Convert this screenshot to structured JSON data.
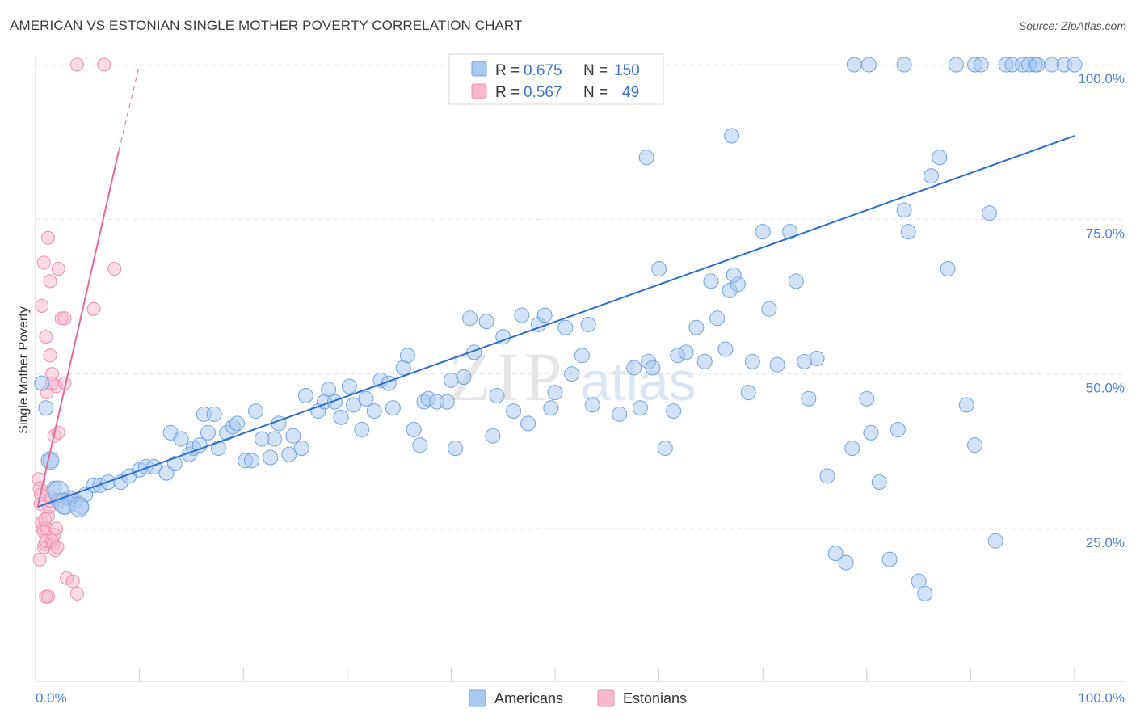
{
  "title": "AMERICAN VS ESTONIAN SINGLE MOTHER POVERTY CORRELATION CHART",
  "source": "Source: ZipAtlas.com",
  "watermark": {
    "zip": "ZIP",
    "atlas": "atlas"
  },
  "colors": {
    "americans_fill": "#a8c8f0",
    "americans_stroke": "#6fa3e0",
    "americans_line": "#2a6fcf",
    "estonians_fill": "#f7b8cc",
    "estonians_stroke": "#ee8fb0",
    "estonians_line": "#e8679a",
    "tick_blue": "#4a7fd4",
    "grid": "#e3e3e3"
  },
  "legend_top": {
    "rows": [
      {
        "r_label": "R =",
        "r_value": "0.675",
        "n_label": "N =",
        "n_value": "150"
      },
      {
        "r_label": "R =",
        "r_value": "0.567",
        "n_label": "N =",
        "n_value": "49"
      }
    ]
  },
  "legend_bottom": [
    "Americans",
    "Estonians"
  ],
  "chart_data": {
    "type": "scatter",
    "title": "AMERICAN VS ESTONIAN SINGLE MOTHER POVERTY CORRELATION CHART",
    "xlabel": "",
    "ylabel": "Single Mother Poverty",
    "xlim": [
      0,
      100
    ],
    "ylim": [
      0,
      100
    ],
    "x_tick_labels": [
      "0.0%",
      "100.0%"
    ],
    "y_ticks": [
      25,
      50,
      75,
      100
    ],
    "y_tick_labels": [
      "25.0%",
      "50.0%",
      "75.0%",
      "100.0%"
    ],
    "grid": true,
    "series": [
      {
        "name": "Americans",
        "R": 0.675,
        "N": 150,
        "trend": {
          "x": [
            0.2,
            100
          ],
          "y": [
            28.5,
            88.5
          ]
        },
        "points": [
          [
            0.6,
            48.5
          ],
          [
            1.0,
            44.5
          ],
          [
            1.4,
            36
          ],
          [
            1.8,
            31.5
          ],
          [
            2.2,
            29.5
          ],
          [
            2.8,
            28.5
          ],
          [
            3.2,
            30
          ],
          [
            3.8,
            29.5
          ],
          [
            4.4,
            28.5
          ],
          [
            4.8,
            30.5
          ],
          [
            5.6,
            32
          ],
          [
            6.2,
            32
          ],
          [
            7.0,
            32.5
          ],
          [
            8.2,
            32.5
          ],
          [
            9.0,
            33.5
          ],
          [
            10.0,
            34.5
          ],
          [
            10.6,
            35
          ],
          [
            11.4,
            35
          ],
          [
            12.6,
            34
          ],
          [
            13.4,
            35.5
          ],
          [
            13.0,
            40.5
          ],
          [
            14.0,
            39.5
          ],
          [
            14.8,
            37
          ],
          [
            15.2,
            38
          ],
          [
            15.8,
            38.5
          ],
          [
            16.6,
            40.5
          ],
          [
            16.2,
            43.5
          ],
          [
            17.2,
            43.5
          ],
          [
            17.6,
            38
          ],
          [
            18.4,
            40.5
          ],
          [
            19.0,
            41.5
          ],
          [
            19.4,
            42
          ],
          [
            20.2,
            36
          ],
          [
            20.8,
            36
          ],
          [
            21.2,
            44
          ],
          [
            21.8,
            39.5
          ],
          [
            22.6,
            36.5
          ],
          [
            23.0,
            39.5
          ],
          [
            23.4,
            42
          ],
          [
            24.4,
            37
          ],
          [
            24.8,
            40
          ],
          [
            25.6,
            38
          ],
          [
            26.0,
            46.5
          ],
          [
            27.2,
            44
          ],
          [
            27.8,
            45.5
          ],
          [
            28.2,
            47.5
          ],
          [
            28.8,
            45.5
          ],
          [
            29.4,
            43
          ],
          [
            30.2,
            48
          ],
          [
            30.6,
            45
          ],
          [
            31.4,
            41
          ],
          [
            31.8,
            46
          ],
          [
            32.6,
            44
          ],
          [
            33.2,
            49
          ],
          [
            34.0,
            48.5
          ],
          [
            34.4,
            44.5
          ],
          [
            35.4,
            51
          ],
          [
            35.8,
            53
          ],
          [
            36.4,
            41
          ],
          [
            37.0,
            38.5
          ],
          [
            37.4,
            45.5
          ],
          [
            37.8,
            46
          ],
          [
            38.6,
            45.5
          ],
          [
            39.6,
            45.5
          ],
          [
            40.0,
            49
          ],
          [
            40.4,
            38
          ],
          [
            41.2,
            49.5
          ],
          [
            41.8,
            59
          ],
          [
            42.2,
            53.5
          ],
          [
            43.4,
            58.5
          ],
          [
            44.0,
            40
          ],
          [
            44.4,
            46.5
          ],
          [
            45.0,
            56
          ],
          [
            46.0,
            44
          ],
          [
            46.8,
            59.5
          ],
          [
            47.4,
            42
          ],
          [
            48.4,
            58
          ],
          [
            49.0,
            59.5
          ],
          [
            49.6,
            44.5
          ],
          [
            50.0,
            47
          ],
          [
            51.0,
            57.5
          ],
          [
            51.6,
            50
          ],
          [
            52.6,
            53
          ],
          [
            53.6,
            45
          ],
          [
            53.2,
            58
          ],
          [
            56.2,
            43.5
          ],
          [
            57.6,
            51
          ],
          [
            58.2,
            44.5
          ],
          [
            59.0,
            52
          ],
          [
            59.4,
            51
          ],
          [
            60.6,
            38
          ],
          [
            61.4,
            44
          ],
          [
            61.8,
            53
          ],
          [
            62.6,
            53.5
          ],
          [
            63.6,
            57.5
          ],
          [
            64.4,
            52
          ],
          [
            65.0,
            65
          ],
          [
            65.6,
            59
          ],
          [
            66.4,
            54
          ],
          [
            66.8,
            63.5
          ],
          [
            67.6,
            64.5
          ],
          [
            68.6,
            47
          ],
          [
            69.0,
            52
          ],
          [
            70.0,
            73
          ],
          [
            70.6,
            60.5
          ],
          [
            71.4,
            51.5
          ],
          [
            72.6,
            73
          ],
          [
            73.2,
            65
          ],
          [
            74.0,
            52
          ],
          [
            74.4,
            46
          ],
          [
            75.2,
            52.5
          ],
          [
            76.2,
            33.5
          ],
          [
            77.0,
            21
          ],
          [
            78.0,
            19.5
          ],
          [
            78.6,
            38
          ],
          [
            80.0,
            46
          ],
          [
            80.4,
            40.5
          ],
          [
            81.2,
            32.5
          ],
          [
            82.2,
            20
          ],
          [
            83.0,
            41
          ],
          [
            83.6,
            76.5
          ],
          [
            84.0,
            73
          ],
          [
            85.0,
            16.5
          ],
          [
            85.6,
            14.5
          ],
          [
            86.2,
            82
          ],
          [
            87.0,
            85
          ],
          [
            87.8,
            67
          ],
          [
            89.6,
            45
          ],
          [
            90.4,
            38.5
          ],
          [
            91.8,
            76
          ],
          [
            92.4,
            23
          ],
          [
            93.4,
            100
          ],
          [
            94.0,
            100
          ],
          [
            95.0,
            100
          ],
          [
            96.2,
            100
          ],
          [
            97.8,
            100
          ],
          [
            99.0,
            100
          ],
          [
            100.0,
            100
          ],
          [
            78.8,
            100
          ],
          [
            80.2,
            100
          ],
          [
            83.6,
            100
          ],
          [
            88.6,
            100
          ],
          [
            90.4,
            100
          ],
          [
            91.0,
            100
          ],
          [
            95.6,
            100
          ],
          [
            96.4,
            100
          ],
          [
            67.2,
            66
          ],
          [
            60.0,
            67
          ],
          [
            67.0,
            88.5
          ],
          [
            58.8,
            85
          ]
        ]
      },
      {
        "name": "Estonians",
        "R": 0.567,
        "N": 49,
        "trend": {
          "x": [
            0.2,
            8.0
          ],
          "y": [
            28.5,
            86.0
          ]
        },
        "trend_dashed": {
          "x": [
            8.0,
            10.0
          ],
          "y": [
            86.0,
            100.0
          ]
        },
        "points": [
          [
            0.3,
            33
          ],
          [
            0.4,
            31.5
          ],
          [
            0.5,
            30.5
          ],
          [
            0.5,
            29
          ],
          [
            0.6,
            26
          ],
          [
            0.7,
            25
          ],
          [
            0.8,
            24.5
          ],
          [
            0.8,
            22
          ],
          [
            0.9,
            22.5
          ],
          [
            1.0,
            23
          ],
          [
            1.1,
            25
          ],
          [
            1.2,
            27
          ],
          [
            1.3,
            28.5
          ],
          [
            1.4,
            29.5
          ],
          [
            1.5,
            30
          ],
          [
            1.6,
            23
          ],
          [
            1.8,
            24
          ],
          [
            2.0,
            25
          ],
          [
            1.7,
            22.5
          ],
          [
            1.9,
            21.5
          ],
          [
            0.6,
            61
          ],
          [
            0.8,
            68
          ],
          [
            1.0,
            56
          ],
          [
            1.2,
            72
          ],
          [
            1.4,
            65
          ],
          [
            1.6,
            50
          ],
          [
            2.0,
            48
          ],
          [
            2.2,
            67
          ],
          [
            1.1,
            47
          ],
          [
            1.4,
            53
          ],
          [
            1.8,
            40
          ],
          [
            2.2,
            40.5
          ],
          [
            2.5,
            59
          ],
          [
            2.8,
            59
          ],
          [
            3.0,
            17
          ],
          [
            3.4,
            30
          ],
          [
            3.6,
            16.5
          ],
          [
            4.0,
            14.5
          ],
          [
            1.0,
            14
          ],
          [
            1.2,
            14
          ],
          [
            5.6,
            60.5
          ],
          [
            7.6,
            67
          ],
          [
            4.0,
            100
          ],
          [
            6.6,
            100
          ],
          [
            1.6,
            48.5
          ],
          [
            2.8,
            48.5
          ],
          [
            0.4,
            20
          ],
          [
            2.1,
            22
          ],
          [
            0.9,
            26.5
          ]
        ]
      }
    ]
  }
}
